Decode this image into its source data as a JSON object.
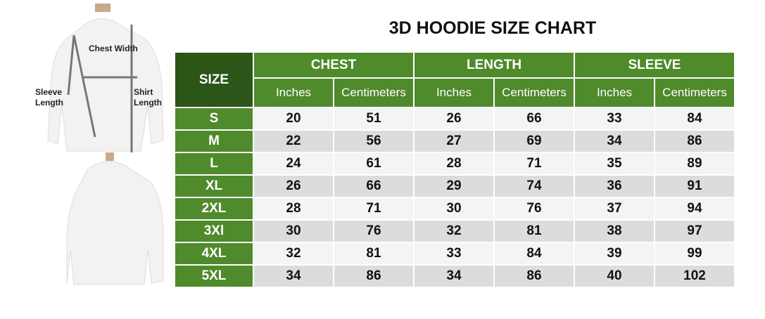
{
  "title": "3D HOODIE SIZE CHART",
  "diagram_labels": {
    "chest": "Chest Width",
    "sleeve": "Sleeve Length",
    "shirt": "Shirt Length"
  },
  "colors": {
    "header_green": "#4f8a2b",
    "size_header": "#2c5518"
  },
  "table": {
    "size_header": "SIZE",
    "groups": [
      "CHEST",
      "LENGTH",
      "SLEEVE"
    ],
    "units": [
      "Inches",
      "Centimeters",
      "Inches",
      "Centimeters",
      "Inches",
      "Centimeters"
    ],
    "rows": [
      {
        "size": "S",
        "values": [
          "20",
          "51",
          "26",
          "66",
          "33",
          "84"
        ]
      },
      {
        "size": "M",
        "values": [
          "22",
          "56",
          "27",
          "69",
          "34",
          "86"
        ]
      },
      {
        "size": "L",
        "values": [
          "24",
          "61",
          "28",
          "71",
          "35",
          "89"
        ]
      },
      {
        "size": "XL",
        "values": [
          "26",
          "66",
          "29",
          "74",
          "36",
          "91"
        ]
      },
      {
        "size": "2XL",
        "values": [
          "28",
          "71",
          "30",
          "76",
          "37",
          "94"
        ]
      },
      {
        "size": "3Xl",
        "values": [
          "30",
          "76",
          "32",
          "81",
          "38",
          "97"
        ]
      },
      {
        "size": "4XL",
        "values": [
          "32",
          "81",
          "33",
          "84",
          "39",
          "99"
        ]
      },
      {
        "size": "5XL",
        "values": [
          "34",
          "86",
          "34",
          "86",
          "40",
          "102"
        ]
      }
    ]
  }
}
